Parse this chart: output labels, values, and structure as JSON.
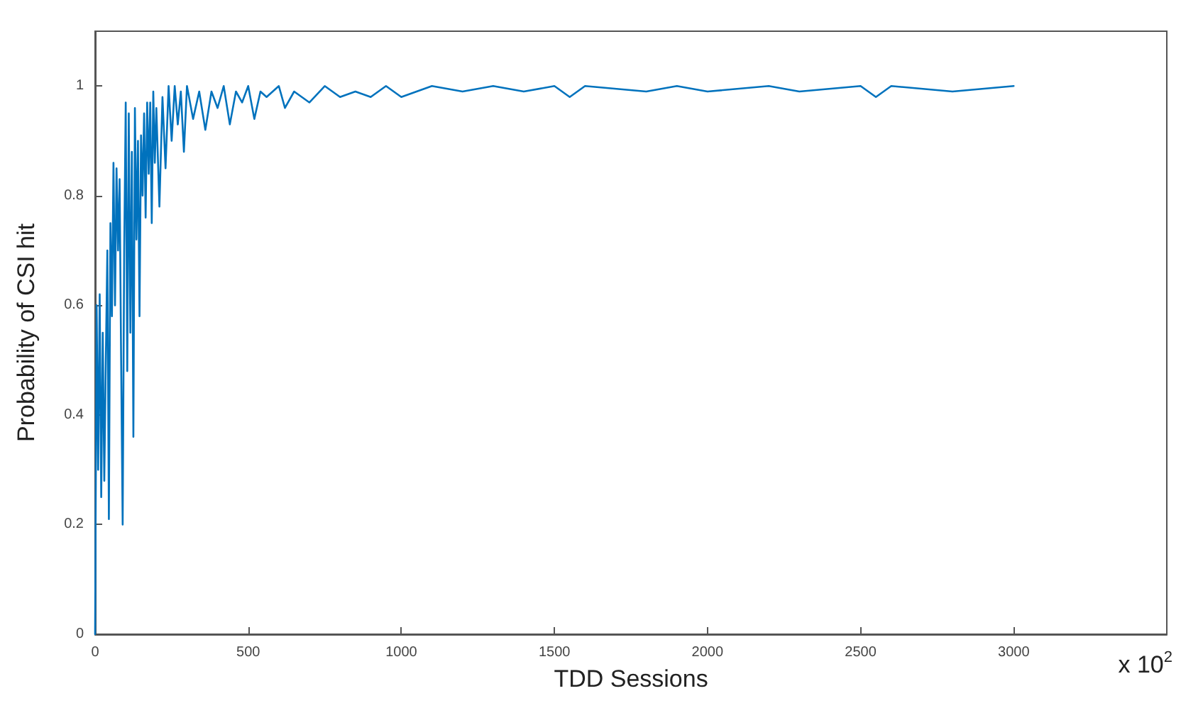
{
  "chart_data": {
    "type": "line",
    "xlabel": "TDD Sessions",
    "ylabel": "Probability of CSI hit",
    "annotations": [
      "x 10$^{2}$"
    ],
    "xlim": [
      0,
      3500
    ],
    "xticks": [
      0,
      500,
      1000,
      1500,
      2000,
      2500,
      3000
    ],
    "ylim": [
      0,
      1.1
    ],
    "yticks": [
      0,
      0.2,
      0.4,
      0.6,
      0.8,
      1
    ],
    "marker": "none",
    "line_style": "solid",
    "series": [
      {
        "color": "#0072bd",
        "x": [
          0,
          5,
          10,
          15,
          20,
          25,
          30,
          35,
          40,
          45,
          50,
          55,
          60,
          65,
          70,
          75,
          80,
          85,
          90,
          95,
          100,
          105,
          110,
          115,
          120,
          125,
          130,
          135,
          140,
          145,
          150,
          155,
          160,
          165,
          170,
          175,
          180,
          185,
          190,
          195,
          200,
          210,
          220,
          230,
          240,
          250,
          260,
          270,
          280,
          290,
          300,
          320,
          340,
          360,
          380,
          400,
          420,
          440,
          460,
          480,
          500,
          520,
          540,
          560,
          600,
          620,
          650,
          700,
          750,
          800,
          850,
          900,
          950,
          1000,
          1100,
          1200,
          1300,
          1400,
          1500,
          1550,
          1600,
          1800,
          1900,
          2000,
          2200,
          2300,
          2500,
          2550,
          2600,
          2800,
          3000
        ],
        "values": [
          0,
          0.6,
          0.3,
          0.62,
          0.25,
          0.55,
          0.28,
          0.5,
          0.7,
          0.21,
          0.75,
          0.58,
          0.86,
          0.6,
          0.85,
          0.7,
          0.83,
          0.5,
          0.2,
          0.7,
          0.97,
          0.48,
          0.95,
          0.55,
          0.88,
          0.36,
          0.96,
          0.72,
          0.9,
          0.58,
          0.91,
          0.8,
          0.95,
          0.76,
          0.97,
          0.84,
          0.97,
          0.75,
          0.99,
          0.86,
          0.96,
          0.78,
          0.98,
          0.85,
          1,
          0.9,
          1,
          0.93,
          0.99,
          0.88,
          1,
          0.94,
          0.99,
          0.92,
          0.99,
          0.96,
          1,
          0.93,
          0.99,
          0.97,
          1,
          0.94,
          0.99,
          0.98,
          1,
          0.96,
          0.99,
          0.97,
          1,
          0.98,
          0.99,
          0.98,
          1,
          0.98,
          1,
          0.99,
          1,
          0.99,
          1,
          0.98,
          1,
          0.99,
          1,
          0.99,
          1,
          0.99,
          1,
          0.98,
          1,
          0.99,
          1
        ]
      }
    ]
  }
}
